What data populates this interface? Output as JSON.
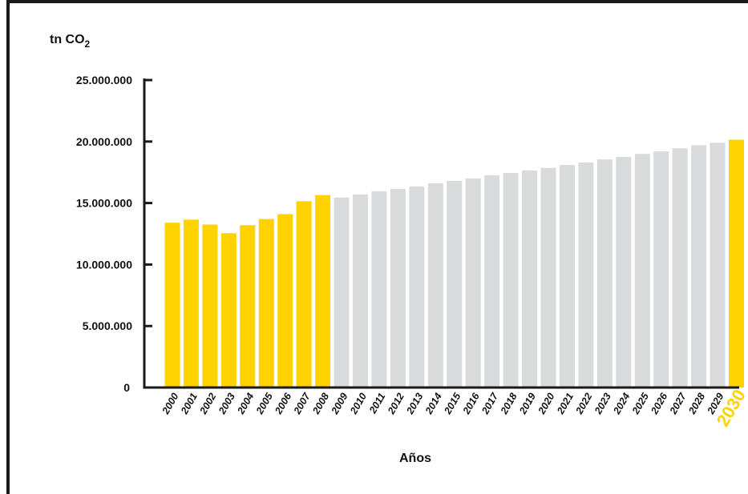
{
  "colors": {
    "highlight": "#FFD200",
    "projection": "#D9DADC",
    "axis": "#1a1a1a"
  },
  "chart_data": {
    "type": "bar",
    "unit_label": "tn CO",
    "unit_subscript": "2",
    "xlabel": "Años",
    "ylim": [
      0,
      25000000
    ],
    "yticks": [
      0,
      5000000,
      10000000,
      15000000,
      20000000,
      25000000
    ],
    "ytick_labels": [
      "0",
      "5.000.000",
      "10.000.000",
      "15.000.000",
      "20.000.000",
      "25.000.000"
    ],
    "categories": [
      "2000",
      "2001",
      "2002",
      "2003",
      "2004",
      "2005",
      "2006",
      "2007",
      "2008",
      "2009",
      "2010",
      "2011",
      "2012",
      "2013",
      "2014",
      "2015",
      "2016",
      "2017",
      "2018",
      "2019",
      "2020",
      "2021",
      "2022",
      "2023",
      "2024",
      "2025",
      "2026",
      "2027",
      "2028",
      "2029",
      "2030"
    ],
    "values": [
      13400000,
      13650000,
      13250000,
      12550000,
      13200000,
      13700000,
      14100000,
      15150000,
      15650000,
      15450000,
      15700000,
      15950000,
      16150000,
      16350000,
      16600000,
      16800000,
      17000000,
      17250000,
      17450000,
      17650000,
      17850000,
      18100000,
      18300000,
      18550000,
      18750000,
      19000000,
      19200000,
      19450000,
      19700000,
      19900000,
      20150000
    ],
    "highlighted": [
      true,
      true,
      true,
      true,
      true,
      true,
      true,
      true,
      true,
      false,
      false,
      false,
      false,
      false,
      false,
      false,
      false,
      false,
      false,
      false,
      false,
      false,
      false,
      false,
      false,
      false,
      false,
      false,
      false,
      false,
      true
    ],
    "emphasized_category": "2030",
    "grid": false,
    "legend": "none"
  }
}
